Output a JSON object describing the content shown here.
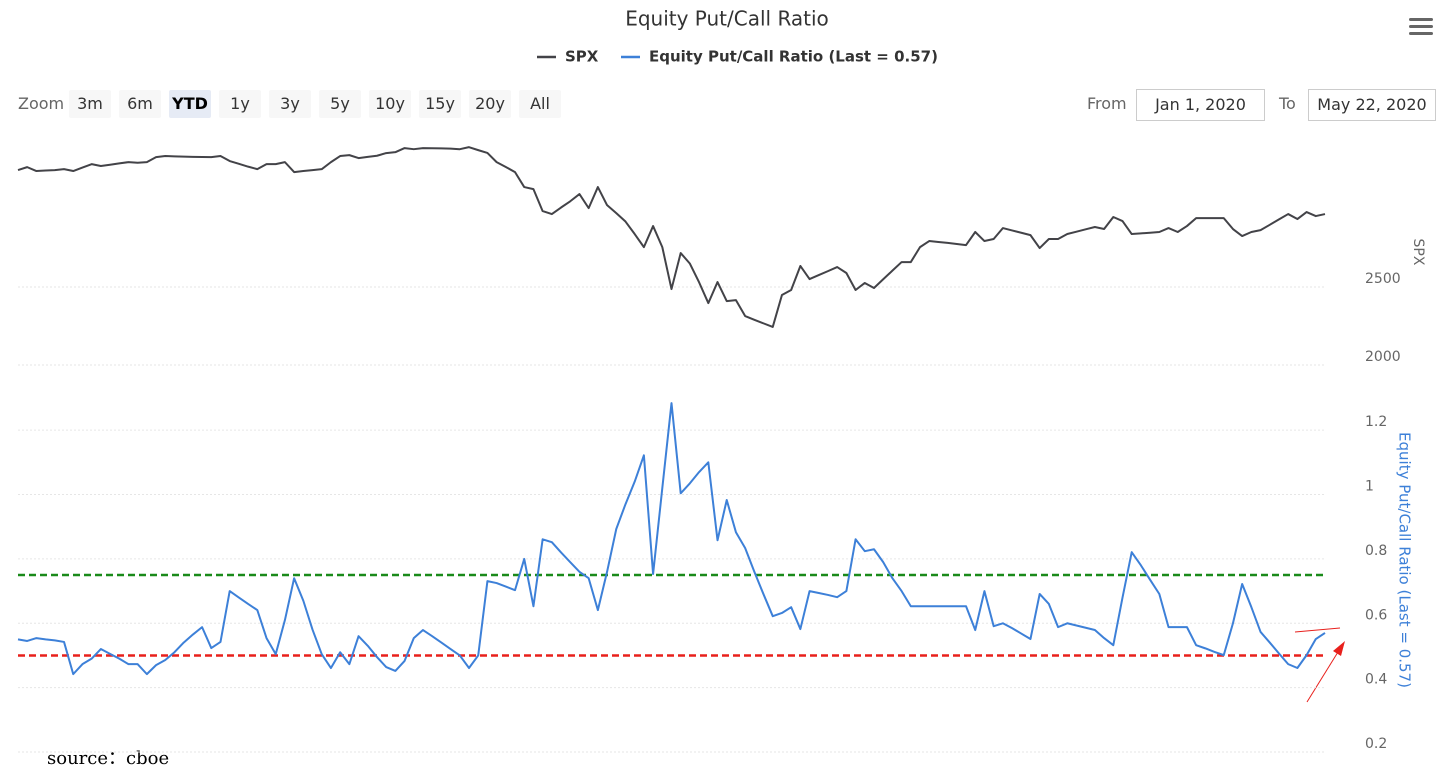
{
  "chart_data": {
    "type": "line",
    "title": "Equity Put/Call Ratio",
    "ylabel": "SPX",
    "y2label": "Equity Put/Call Ratio (Last = 0.57)",
    "ylim": [
      2000,
      3475
    ],
    "yticks": [
      2000,
      2500
    ],
    "y2lim": [
      0.2,
      1.3
    ],
    "y2ticks": [
      0.2,
      0.4,
      0.6,
      0.8,
      1,
      1.2
    ],
    "grid": true,
    "reference_lines": [
      {
        "value": 0.75,
        "color": "#1a8a1a",
        "axis": "y2"
      },
      {
        "value": 0.5,
        "color": "#e8201c",
        "axis": "y2"
      }
    ],
    "series": [
      {
        "name": "SPX",
        "color": "#434348",
        "axis": "y",
        "values": [
          3250,
          3269,
          3244,
          3247,
          3250,
          3256,
          3244,
          3266,
          3288,
          3276,
          3284,
          3293,
          3301,
          3297,
          3301,
          3333,
          3340,
          3338,
          3336,
          3335,
          3334,
          3333,
          3340,
          3308,
          3290,
          3272,
          3256,
          3288,
          3288,
          3301,
          3237,
          3244,
          3250,
          3256,
          3301,
          3340,
          3346,
          3327,
          3335,
          3342,
          3359,
          3365,
          3391,
          3384,
          3391,
          3390,
          3389,
          3388,
          3384,
          3397,
          3378,
          3360,
          3301,
          3270,
          3237,
          3141,
          3128,
          2987,
          2968,
          3010,
          3050,
          3096,
          3006,
          3141,
          3025,
          2974,
          2920,
          2840,
          2756,
          2891,
          2756,
          2487,
          2718,
          2650,
          2530,
          2397,
          2532,
          2410,
          2416,
          2314,
          2290,
          2267,
          2244,
          2449,
          2481,
          2635,
          2551,
          2577,
          2602,
          2628,
          2590,
          2481,
          2526,
          2494,
          2550,
          2605,
          2660,
          2660,
          2756,
          2795,
          2789,
          2783,
          2776,
          2769,
          2853,
          2795,
          2808,
          2878,
          2863,
          2848,
          2833,
          2750,
          2808,
          2808,
          2840,
          2855,
          2870,
          2885,
          2872,
          2949,
          2923,
          2840,
          2844,
          2848,
          2853,
          2878,
          2853,
          2891,
          2942,
          2942,
          2942,
          2942,
          2872,
          2827,
          2853,
          2865,
          2899,
          2934,
          2968,
          2936,
          2981,
          2955,
          2968
        ]
      },
      {
        "name": "Equity Put/Call Ratio (Last = 0.57)",
        "color": "#3d80d8",
        "axis": "y2",
        "values": [
          0.55,
          0.545,
          0.554,
          0.55,
          0.547,
          0.542,
          0.442,
          0.473,
          0.49,
          0.52,
          0.505,
          0.49,
          0.473,
          0.473,
          0.442,
          0.47,
          0.486,
          0.51,
          0.54,
          0.565,
          0.588,
          0.523,
          0.542,
          0.7,
          0.68,
          0.66,
          0.641,
          0.554,
          0.504,
          0.61,
          0.74,
          0.67,
          0.58,
          0.504,
          0.461,
          0.51,
          0.473,
          0.56,
          0.53,
          0.495,
          0.464,
          0.452,
          0.483,
          0.554,
          0.579,
          0.56,
          0.54,
          0.52,
          0.5,
          0.461,
          0.5,
          0.731,
          0.725,
          0.714,
          0.703,
          0.8,
          0.653,
          0.861,
          0.852,
          0.82,
          0.79,
          0.76,
          0.74,
          0.641,
          0.76,
          0.893,
          0.97,
          1.04,
          1.122,
          0.753,
          1.02,
          1.284,
          1.004,
          1.035,
          1.07,
          1.1,
          0.858,
          0.983,
          0.883,
          0.834,
          0.76,
          0.69,
          0.622,
          0.632,
          0.65,
          0.582,
          0.7,
          0.694,
          0.688,
          0.681,
          0.7,
          0.861,
          0.824,
          0.83,
          0.79,
          0.74,
          0.7,
          0.653,
          0.653,
          0.653,
          0.653,
          0.653,
          0.653,
          0.653,
          0.579,
          0.7,
          0.591,
          0.6,
          0.585,
          0.568,
          0.551,
          0.691,
          0.66,
          0.588,
          0.6,
          0.593,
          0.586,
          0.579,
          0.554,
          0.532,
          0.68,
          0.821,
          0.78,
          0.735,
          0.691,
          0.588,
          0.588,
          0.588,
          0.532,
          0.522,
          0.511,
          0.501,
          0.6,
          0.722,
          0.65,
          0.573,
          0.54,
          0.506,
          0.473,
          0.461,
          0.501,
          0.551,
          0.57
        ]
      }
    ]
  },
  "range_selector": {
    "zoom_label": "Zoom",
    "buttons": [
      "3m",
      "6m",
      "YTD",
      "1y",
      "3y",
      "5y",
      "10y",
      "15y",
      "20y",
      "All"
    ],
    "selected": "YTD",
    "from_label": "From",
    "from": "Jan 1, 2020",
    "to_label": "To",
    "to": "May 22, 2020"
  },
  "source": "source：cboe"
}
